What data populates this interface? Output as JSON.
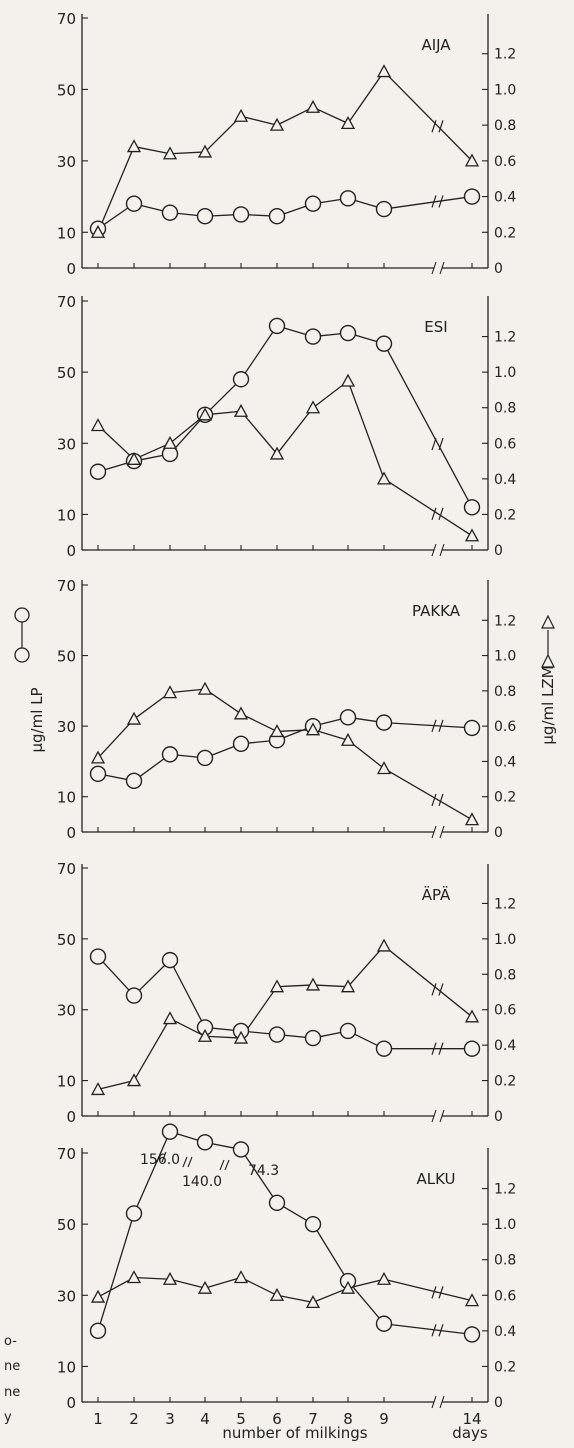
{
  "chart_data": {
    "type": "line",
    "xlabel": "number of milkings",
    "x_end_label": "days",
    "x_ticks": [
      "1",
      "2",
      "3",
      "4",
      "5",
      "6",
      "7",
      "8",
      "9",
      "14"
    ],
    "left_axis_label": "µg/ml  LP",
    "right_axis_label": "µg/ml  LZM",
    "left_ticks": [
      "0",
      "10",
      "30",
      "50",
      "70"
    ],
    "right_ticks": [
      "0",
      "0.2",
      "0.4",
      "0.6",
      "0.8",
      "1.0",
      "1.2"
    ],
    "left_ylim": [
      0,
      70
    ],
    "right_ylim": [
      0,
      1.4
    ],
    "axis_break_at": "between 9 and 14",
    "panels": [
      {
        "name": "AIJA",
        "series": [
          {
            "marker": "circle",
            "axis": "left",
            "values": [
              11,
              18,
              15.5,
              14.5,
              15,
              14.5,
              18,
              19.5,
              16.5,
              20
            ]
          },
          {
            "marker": "triangle",
            "axis": "right",
            "values": [
              0.2,
              0.68,
              0.64,
              0.65,
              0.85,
              0.8,
              0.9,
              0.81,
              1.1,
              0.6
            ]
          }
        ],
        "annotations": []
      },
      {
        "name": "ESI",
        "series": [
          {
            "marker": "circle",
            "axis": "left",
            "values": [
              22,
              25,
              27,
              38,
              48,
              63,
              60,
              61,
              58,
              12
            ]
          },
          {
            "marker": "triangle",
            "axis": "right",
            "values": [
              0.7,
              0.51,
              0.6,
              0.76,
              0.78,
              0.54,
              0.8,
              0.95,
              0.4,
              0.08
            ]
          }
        ],
        "annotations": []
      },
      {
        "name": "PAKKA",
        "series": [
          {
            "marker": "circle",
            "axis": "left",
            "values": [
              16.5,
              14.5,
              22,
              21,
              25,
              26,
              30,
              32.5,
              31,
              29.5
            ]
          },
          {
            "marker": "triangle",
            "axis": "right",
            "values": [
              0.42,
              0.64,
              0.79,
              0.81,
              0.67,
              0.57,
              0.58,
              0.52,
              0.36,
              0.07
            ]
          }
        ],
        "annotations": []
      },
      {
        "name": "ÄPÄ",
        "series": [
          {
            "marker": "circle",
            "axis": "left",
            "values": [
              45,
              34,
              44,
              25,
              24,
              23,
              22,
              24,
              19,
              19
            ]
          },
          {
            "marker": "triangle",
            "axis": "right",
            "values": [
              0.15,
              0.2,
              0.55,
              0.45,
              0.44,
              0.73,
              0.74,
              0.73,
              0.96,
              0.56
            ]
          }
        ],
        "annotations": []
      },
      {
        "name": "ALKU",
        "series": [
          {
            "marker": "circle",
            "axis": "left",
            "values": [
              20,
              53,
              76,
              73,
              71,
              56,
              50,
              34,
              22,
              19
            ]
          },
          {
            "marker": "triangle",
            "axis": "right",
            "values": [
              0.59,
              0.7,
              0.69,
              0.64,
              0.7,
              0.6,
              0.56,
              0.64,
              0.69,
              0.57
            ]
          }
        ],
        "annotations": [
          "156.0",
          "140.0",
          "74.3"
        ]
      }
    ]
  },
  "margin_text": [
    "o-",
    "ne",
    "ne",
    "y"
  ]
}
